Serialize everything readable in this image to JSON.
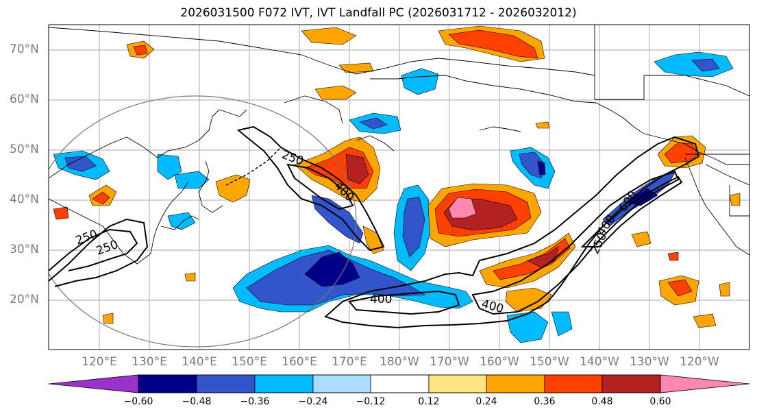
{
  "title": "2026031500 F072 IVT, IVT Landfall PC (2026031712 - 2026032012)",
  "lat_labels": [
    "70°N",
    "60°N",
    "50°N",
    "40°N",
    "30°N",
    "20°N"
  ],
  "lon_labels": [
    "120°E",
    "130°E",
    "140°E",
    "150°E",
    "160°E",
    "170°E",
    "180°W",
    "170°W",
    "160°W",
    "150°W",
    "140°W",
    "130°W",
    "120°W"
  ],
  "contour_labels": [
    "250",
    "400",
    "250",
    "250",
    "400",
    "600",
    "250",
    "400",
    "400"
  ],
  "colorbar": {
    "ticks": [
      "−0.60",
      "−0.48",
      "−0.36",
      "−0.24",
      "−0.12",
      "0.12",
      "0.24",
      "0.36",
      "0.48",
      "0.60"
    ],
    "colors": [
      "#9933cc",
      "#000088",
      "#3355cc",
      "#00bbff",
      "#aaddff",
      "#ffffff",
      "#ffe680",
      "#ffa500",
      "#ff4000",
      "#b22222",
      "#ff88b0"
    ]
  }
}
